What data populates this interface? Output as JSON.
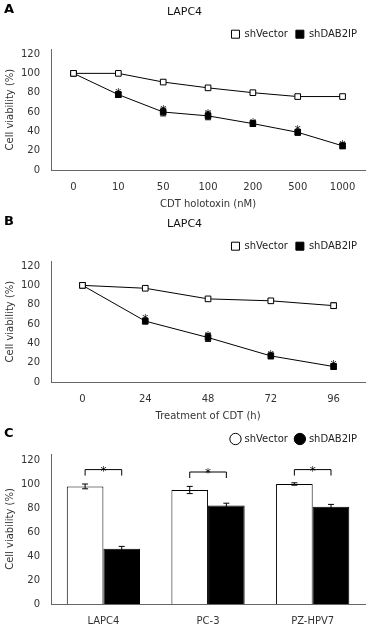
{
  "chart_data": [
    {
      "type": "line",
      "panel_label": "A",
      "title": "LAPC4",
      "xlabel": "CDT holotoxin (nM)",
      "ylabel": "Cell viability (%)",
      "categories": [
        "0",
        "10",
        "50",
        "100",
        "200",
        "500",
        "1000"
      ],
      "series": [
        {
          "name": "shVector",
          "color": "#ffffff",
          "values": [
            100,
            100,
            91,
            85,
            80,
            76,
            76
          ],
          "errors": [
            1,
            1,
            2,
            2,
            2,
            2,
            2
          ]
        },
        {
          "name": "shDAB2IP",
          "color": "#000000",
          "values": [
            100,
            78,
            60,
            56,
            48,
            39,
            25
          ],
          "errors": [
            1,
            3,
            4,
            4,
            3,
            3,
            3
          ]
        }
      ],
      "ylim": [
        0,
        125
      ],
      "yticks": [
        0,
        20,
        40,
        60,
        80,
        100,
        120
      ],
      "grid": false,
      "legend": "upper right",
      "marker": "square",
      "line_style": "solid",
      "annotations": [
        {
          "text": "*",
          "x": "10",
          "y": 82
        },
        {
          "text": "*",
          "x": "50",
          "y": 64
        },
        {
          "text": "*",
          "x": "100",
          "y": 60
        },
        {
          "text": "*",
          "x": "200",
          "y": 51
        },
        {
          "text": "*",
          "x": "500",
          "y": 43
        },
        {
          "text": "*",
          "x": "1000",
          "y": 28
        }
      ]
    },
    {
      "type": "line",
      "panel_label": "B",
      "title": "LAPC4",
      "xlabel": "Treatment of CDT (h)",
      "ylabel": "Cell viability (%)",
      "categories": [
        "0",
        "24",
        "48",
        "72",
        "96"
      ],
      "series": [
        {
          "name": "shVector",
          "color": "#ffffff",
          "values": [
            100,
            97,
            86,
            84,
            79
          ],
          "errors": [
            1,
            2,
            2,
            2,
            3
          ]
        },
        {
          "name": "shDAB2IP",
          "color": "#000000",
          "values": [
            100,
            63,
            46,
            27,
            16
          ],
          "errors": [
            1,
            3,
            4,
            3,
            3
          ]
        }
      ],
      "ylim": [
        0,
        125
      ],
      "yticks": [
        0,
        20,
        40,
        60,
        80,
        100,
        120
      ],
      "grid": false,
      "legend": "upper right",
      "marker": "square",
      "line_style": "solid",
      "annotations": [
        {
          "text": "*",
          "x": "24",
          "y": 67
        },
        {
          "text": "*",
          "x": "48",
          "y": 50
        },
        {
          "text": "*",
          "x": "72",
          "y": 30
        },
        {
          "text": "*",
          "x": "96",
          "y": 20
        }
      ]
    },
    {
      "type": "bar",
      "panel_label": "C",
      "ylabel": "Cell viability (%)",
      "categories": [
        "LAPC4",
        "PC-3",
        "PZ-HPV7"
      ],
      "series": [
        {
          "name": "shVector",
          "color": "#ffffff",
          "values": [
            98,
            95,
            100
          ],
          "errors": [
            2,
            3,
            1
          ]
        },
        {
          "name": "shDAB2IP",
          "color": "#000000",
          "values": [
            46,
            82,
            81
          ],
          "errors": [
            2,
            2,
            2
          ]
        }
      ],
      "ylim": [
        0,
        125
      ],
      "yticks": [
        0,
        20,
        40,
        60,
        80,
        100,
        120
      ],
      "grid": false,
      "legend": "upper right",
      "annotations": [
        {
          "text": "*",
          "x": "LAPC4",
          "y": 112
        },
        {
          "text": "*",
          "x": "PC-3",
          "y": 110
        },
        {
          "text": "*",
          "x": "PZ-HPV7",
          "y": 112
        }
      ]
    }
  ]
}
